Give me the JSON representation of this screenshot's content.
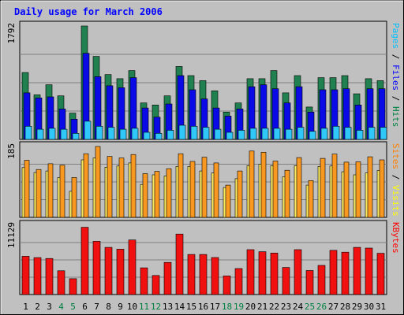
{
  "chart_data": {
    "type": "bar",
    "title": "Daily usage for March 2006",
    "categories": [
      "1",
      "2",
      "3",
      "4",
      "5",
      "6",
      "7",
      "8",
      "9",
      "10",
      "11",
      "12",
      "13",
      "14",
      "15",
      "16",
      "17",
      "18",
      "19",
      "20",
      "21",
      "22",
      "23",
      "24",
      "25",
      "26",
      "27",
      "28",
      "29",
      "30",
      "31"
    ],
    "weekend_days": [
      "4",
      "5",
      "11",
      "12",
      "18",
      "19",
      "25",
      "26"
    ],
    "panels": [
      {
        "id": "hits",
        "ymax_label": "1792",
        "ylim": [
          0,
          1792
        ],
        "legend": [
          {
            "text": "Pages",
            "color": "#00c0ff"
          },
          {
            "text": " / ",
            "color": "#000000"
          },
          {
            "text": "Files",
            "color": "#0000ff"
          },
          {
            "text": " / ",
            "color": "#000000"
          },
          {
            "text": "Hits",
            "color": "#008040"
          }
        ],
        "series": [
          {
            "name": "Hits",
            "color": "#208050",
            "values": [
              1056,
              704,
              864,
              688,
              416,
              1792,
              1312,
              1024,
              960,
              1088,
              576,
              544,
              688,
              1152,
              1008,
              928,
              768,
              432,
              576,
              960,
              960,
              1088,
              736,
              1008,
              512,
              976,
              976,
              1008,
              720,
              960,
              928
            ]
          },
          {
            "name": "Files",
            "color": "#0a0ae6",
            "values": [
              736,
              656,
              672,
              480,
              320,
              1360,
              992,
              848,
              816,
              976,
              496,
              352,
              560,
              1008,
              784,
              640,
              496,
              368,
              480,
              832,
              864,
              800,
              576,
              832,
              432,
              784,
              784,
              800,
              544,
              800,
              800
            ]
          },
          {
            "name": "Pages",
            "color": "#30c8f8",
            "values": [
              208,
              160,
              176,
              160,
              96,
              288,
              208,
              192,
              160,
              176,
              112,
              96,
              144,
              224,
              208,
              192,
              160,
              112,
              144,
              176,
              176,
              176,
              160,
              192,
              128,
              176,
              208,
              192,
              144,
              192,
              192
            ]
          }
        ]
      },
      {
        "id": "visits",
        "ymax_label": "185",
        "ylim": [
          0,
          185
        ],
        "legend": [
          {
            "text": "Sites",
            "color": "#ff8000"
          },
          {
            "text": " / ",
            "color": "#000000"
          },
          {
            "text": "Visits",
            "color": "#ffff00"
          }
        ],
        "series": [
          {
            "name": "Visits",
            "color": "#f8e860",
            "values": [
              130,
              117,
              121,
              104,
              68,
              150,
              155,
              131,
              134,
              142,
              86,
              111,
              108,
              133,
              133,
              121,
              116,
              78,
              101,
              135,
              139,
              135,
              106,
              135,
              84,
              133,
              134,
              119,
              111,
              116,
              122
            ]
          },
          {
            "name": "Sites",
            "color": "#f89820",
            "values": [
              149,
              125,
              140,
              136,
              104,
              166,
              185,
              159,
              155,
              164,
              114,
              120,
              127,
              166,
              146,
              157,
              142,
              84,
              121,
              173,
              170,
              147,
              123,
              156,
              96,
              154,
              165,
              144,
              145,
              158,
              150
            ]
          }
        ]
      },
      {
        "id": "kbytes",
        "ymax_label": "11129",
        "ylim": [
          0,
          11129
        ],
        "legend": [
          {
            "text": "KBytes",
            "color": "#ff0000"
          }
        ],
        "series": [
          {
            "name": "KBytes",
            "color": "#f01010",
            "values": [
              6150,
              5932,
              5786,
              3823,
              2543,
              10802,
              8547,
              7570,
              7280,
              8765,
              4282,
              3055,
              5163,
              9711,
              6441,
              6441,
              5950,
              2984,
              4173,
              7207,
              6877,
              6659,
              4350,
              7207,
              3859,
              4677,
              7097,
              6805,
              7570,
              7462,
              6623
            ]
          }
        ]
      }
    ]
  }
}
